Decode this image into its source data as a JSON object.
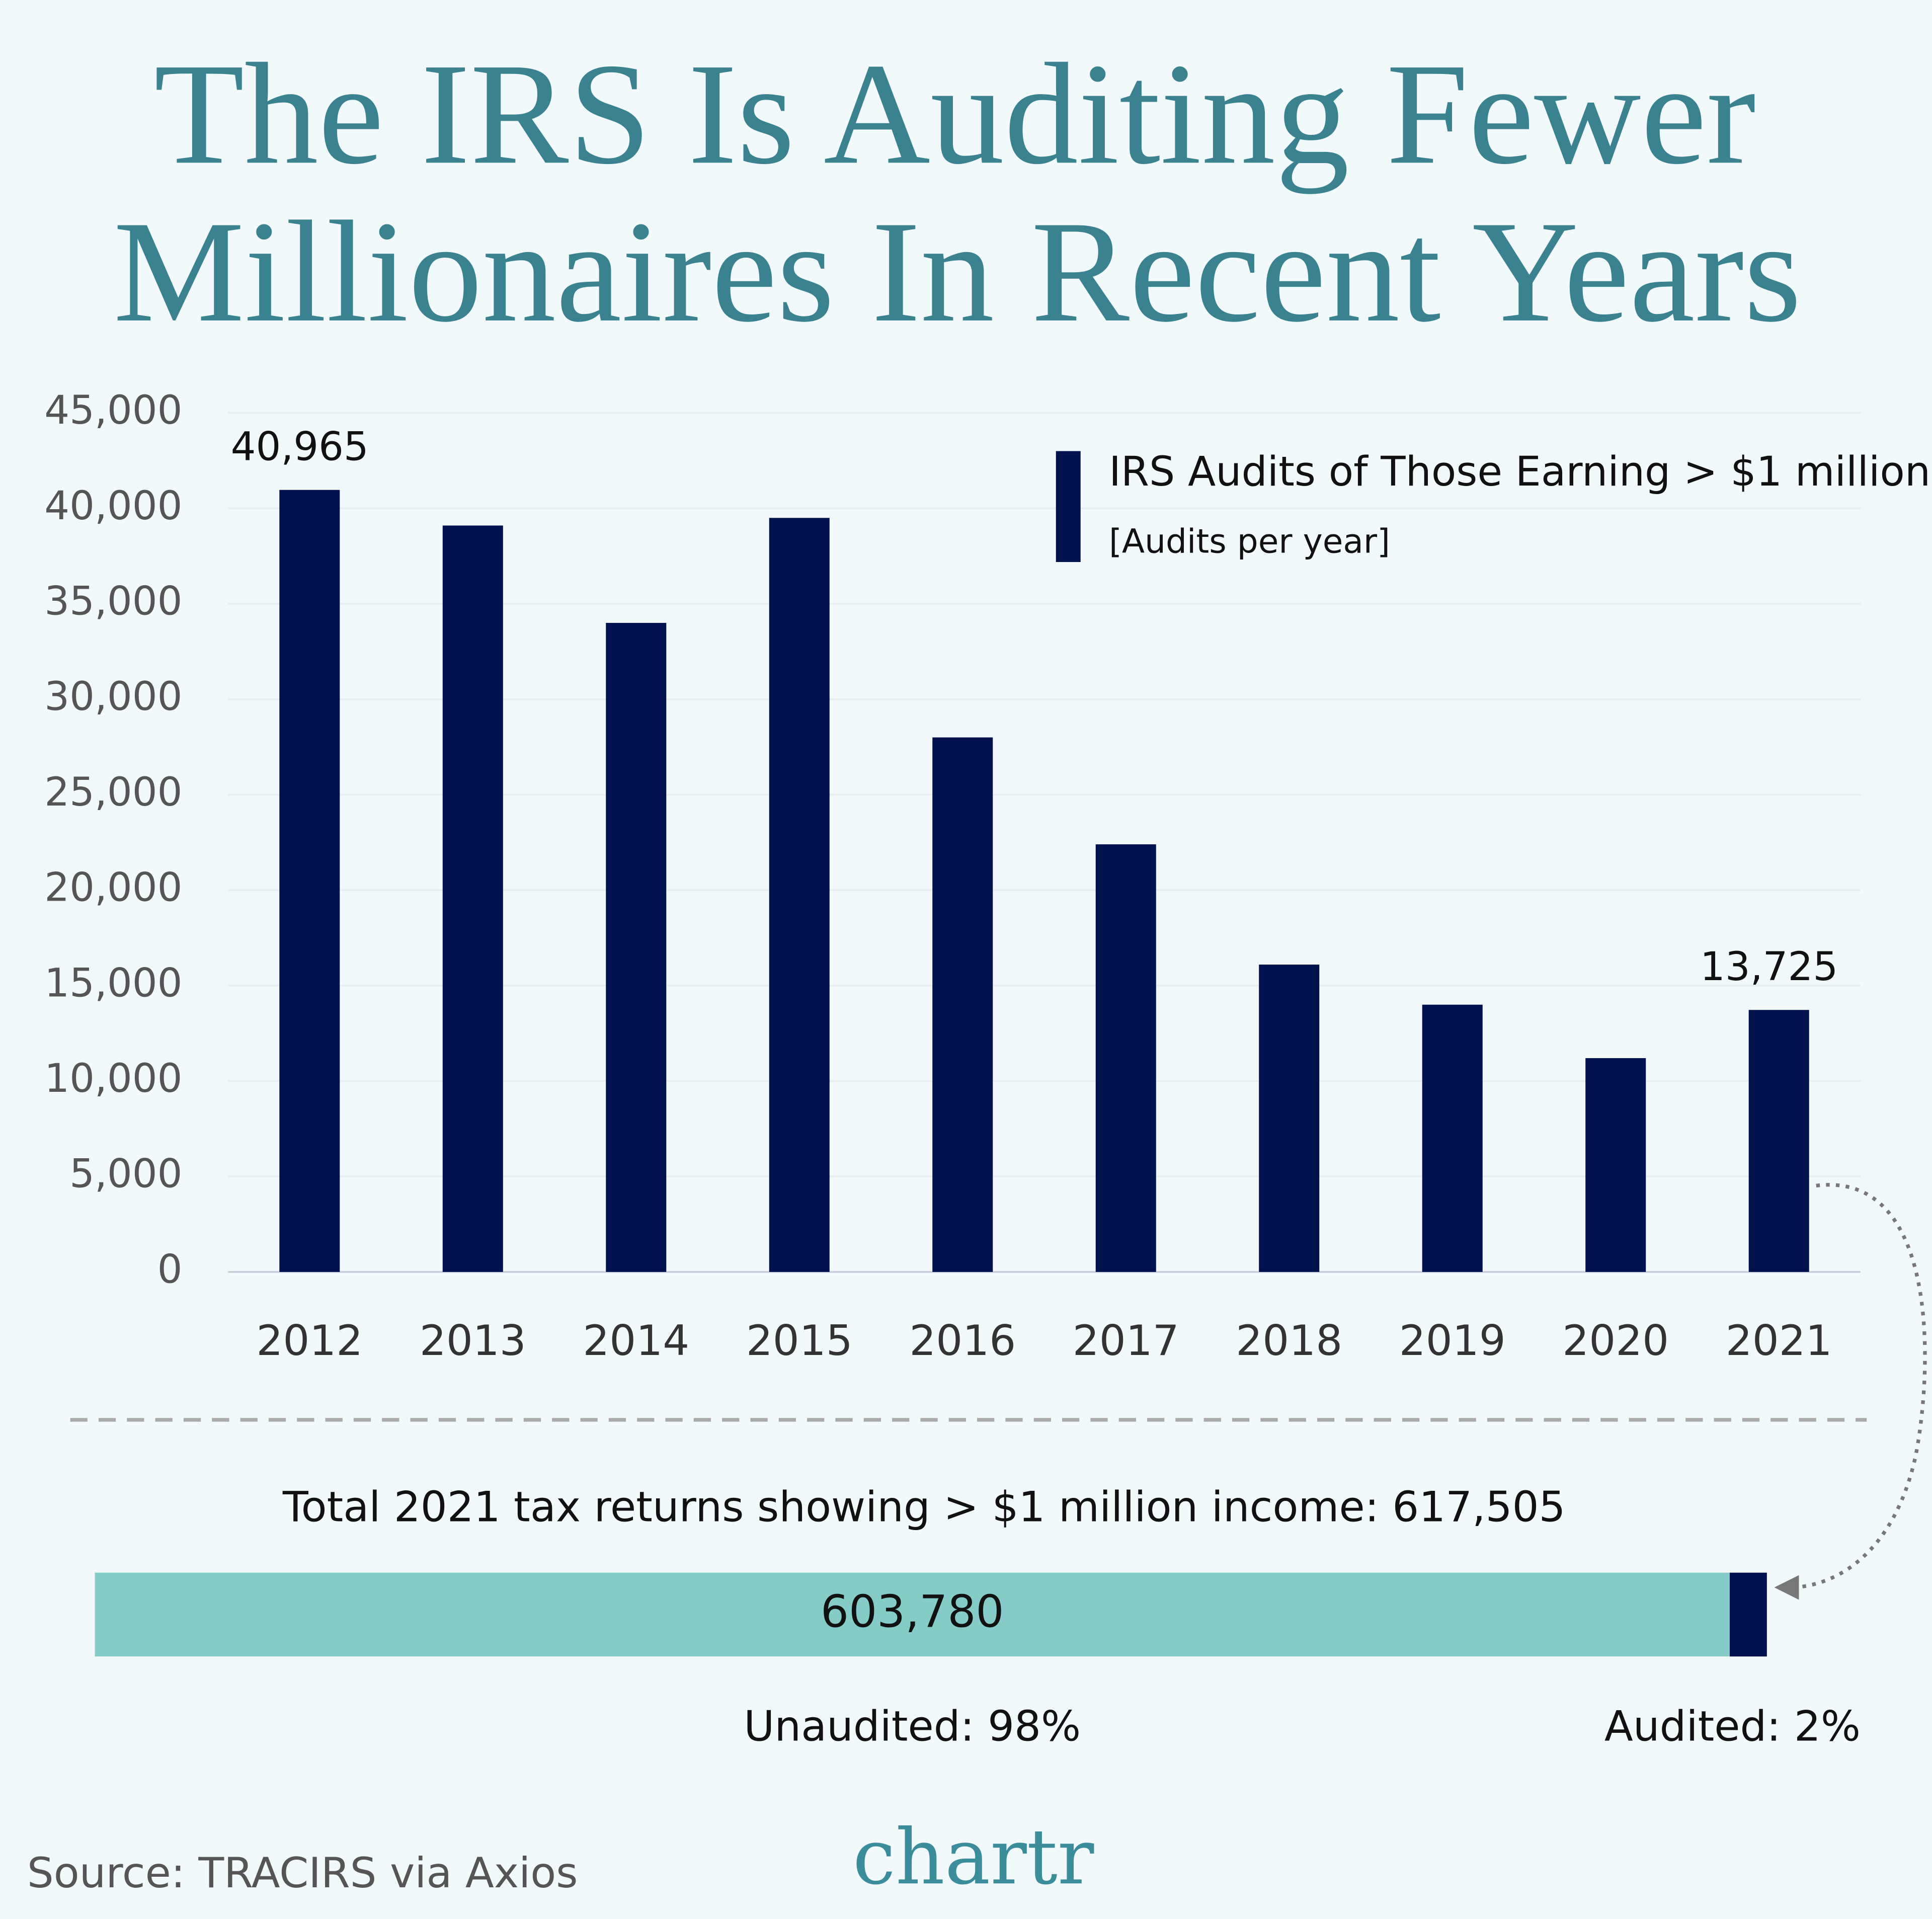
{
  "title": [
    "The IRS Is Auditing Fewer",
    "Millionaires In Recent Years"
  ],
  "chart_data": [
    {
      "type": "bar",
      "categories": [
        "2012",
        "2013",
        "2014",
        "2015",
        "2016",
        "2017",
        "2018",
        "2019",
        "2020",
        "2021"
      ],
      "series": [
        {
          "name": "IRS Audits of Those Earning > $1 million",
          "color": "#00124d",
          "values": [
            40965,
            39100,
            34000,
            39500,
            28000,
            22400,
            16100,
            14000,
            11200,
            13725
          ],
          "value_labels": [
            "40,965",
            null,
            null,
            null,
            null,
            null,
            null,
            null,
            null,
            "13,725"
          ]
        }
      ],
      "unit_label": "[Audits per year]",
      "ylim": [
        0,
        45000
      ],
      "yticks": [
        0,
        {
          "value": 5000,
          "label": "5,000"
        },
        {
          "value": 10000,
          "label": "10,000"
        },
        {
          "value": 15000,
          "label": "15,000"
        },
        {
          "value": 20000,
          "label": "20,000"
        },
        {
          "value": 25000,
          "label": "25,000"
        },
        {
          "value": 30000,
          "label": "30,000"
        },
        {
          "value": 35000,
          "label": "35,000"
        },
        {
          "value": 40000,
          "label": "40,000"
        },
        {
          "value": 45000,
          "label": "45,000"
        }
      ],
      "grid": true
    },
    {
      "type": "stacked-hbar",
      "title": "Total 2021 tax returns showing > $1 million income: 617,505",
      "series": [
        {
          "name": "Unaudited: 98%",
          "color": "#85cbc8",
          "values": [
            603780
          ],
          "value_labels": [
            "603,780"
          ]
        },
        {
          "name": "Audited: 2%",
          "color": "#00124d",
          "values": [
            13725
          ]
        }
      ],
      "xlim": [
        0,
        617505
      ]
    }
  ],
  "source": "Source: TRACIRS via Axios",
  "logo": "chartr"
}
